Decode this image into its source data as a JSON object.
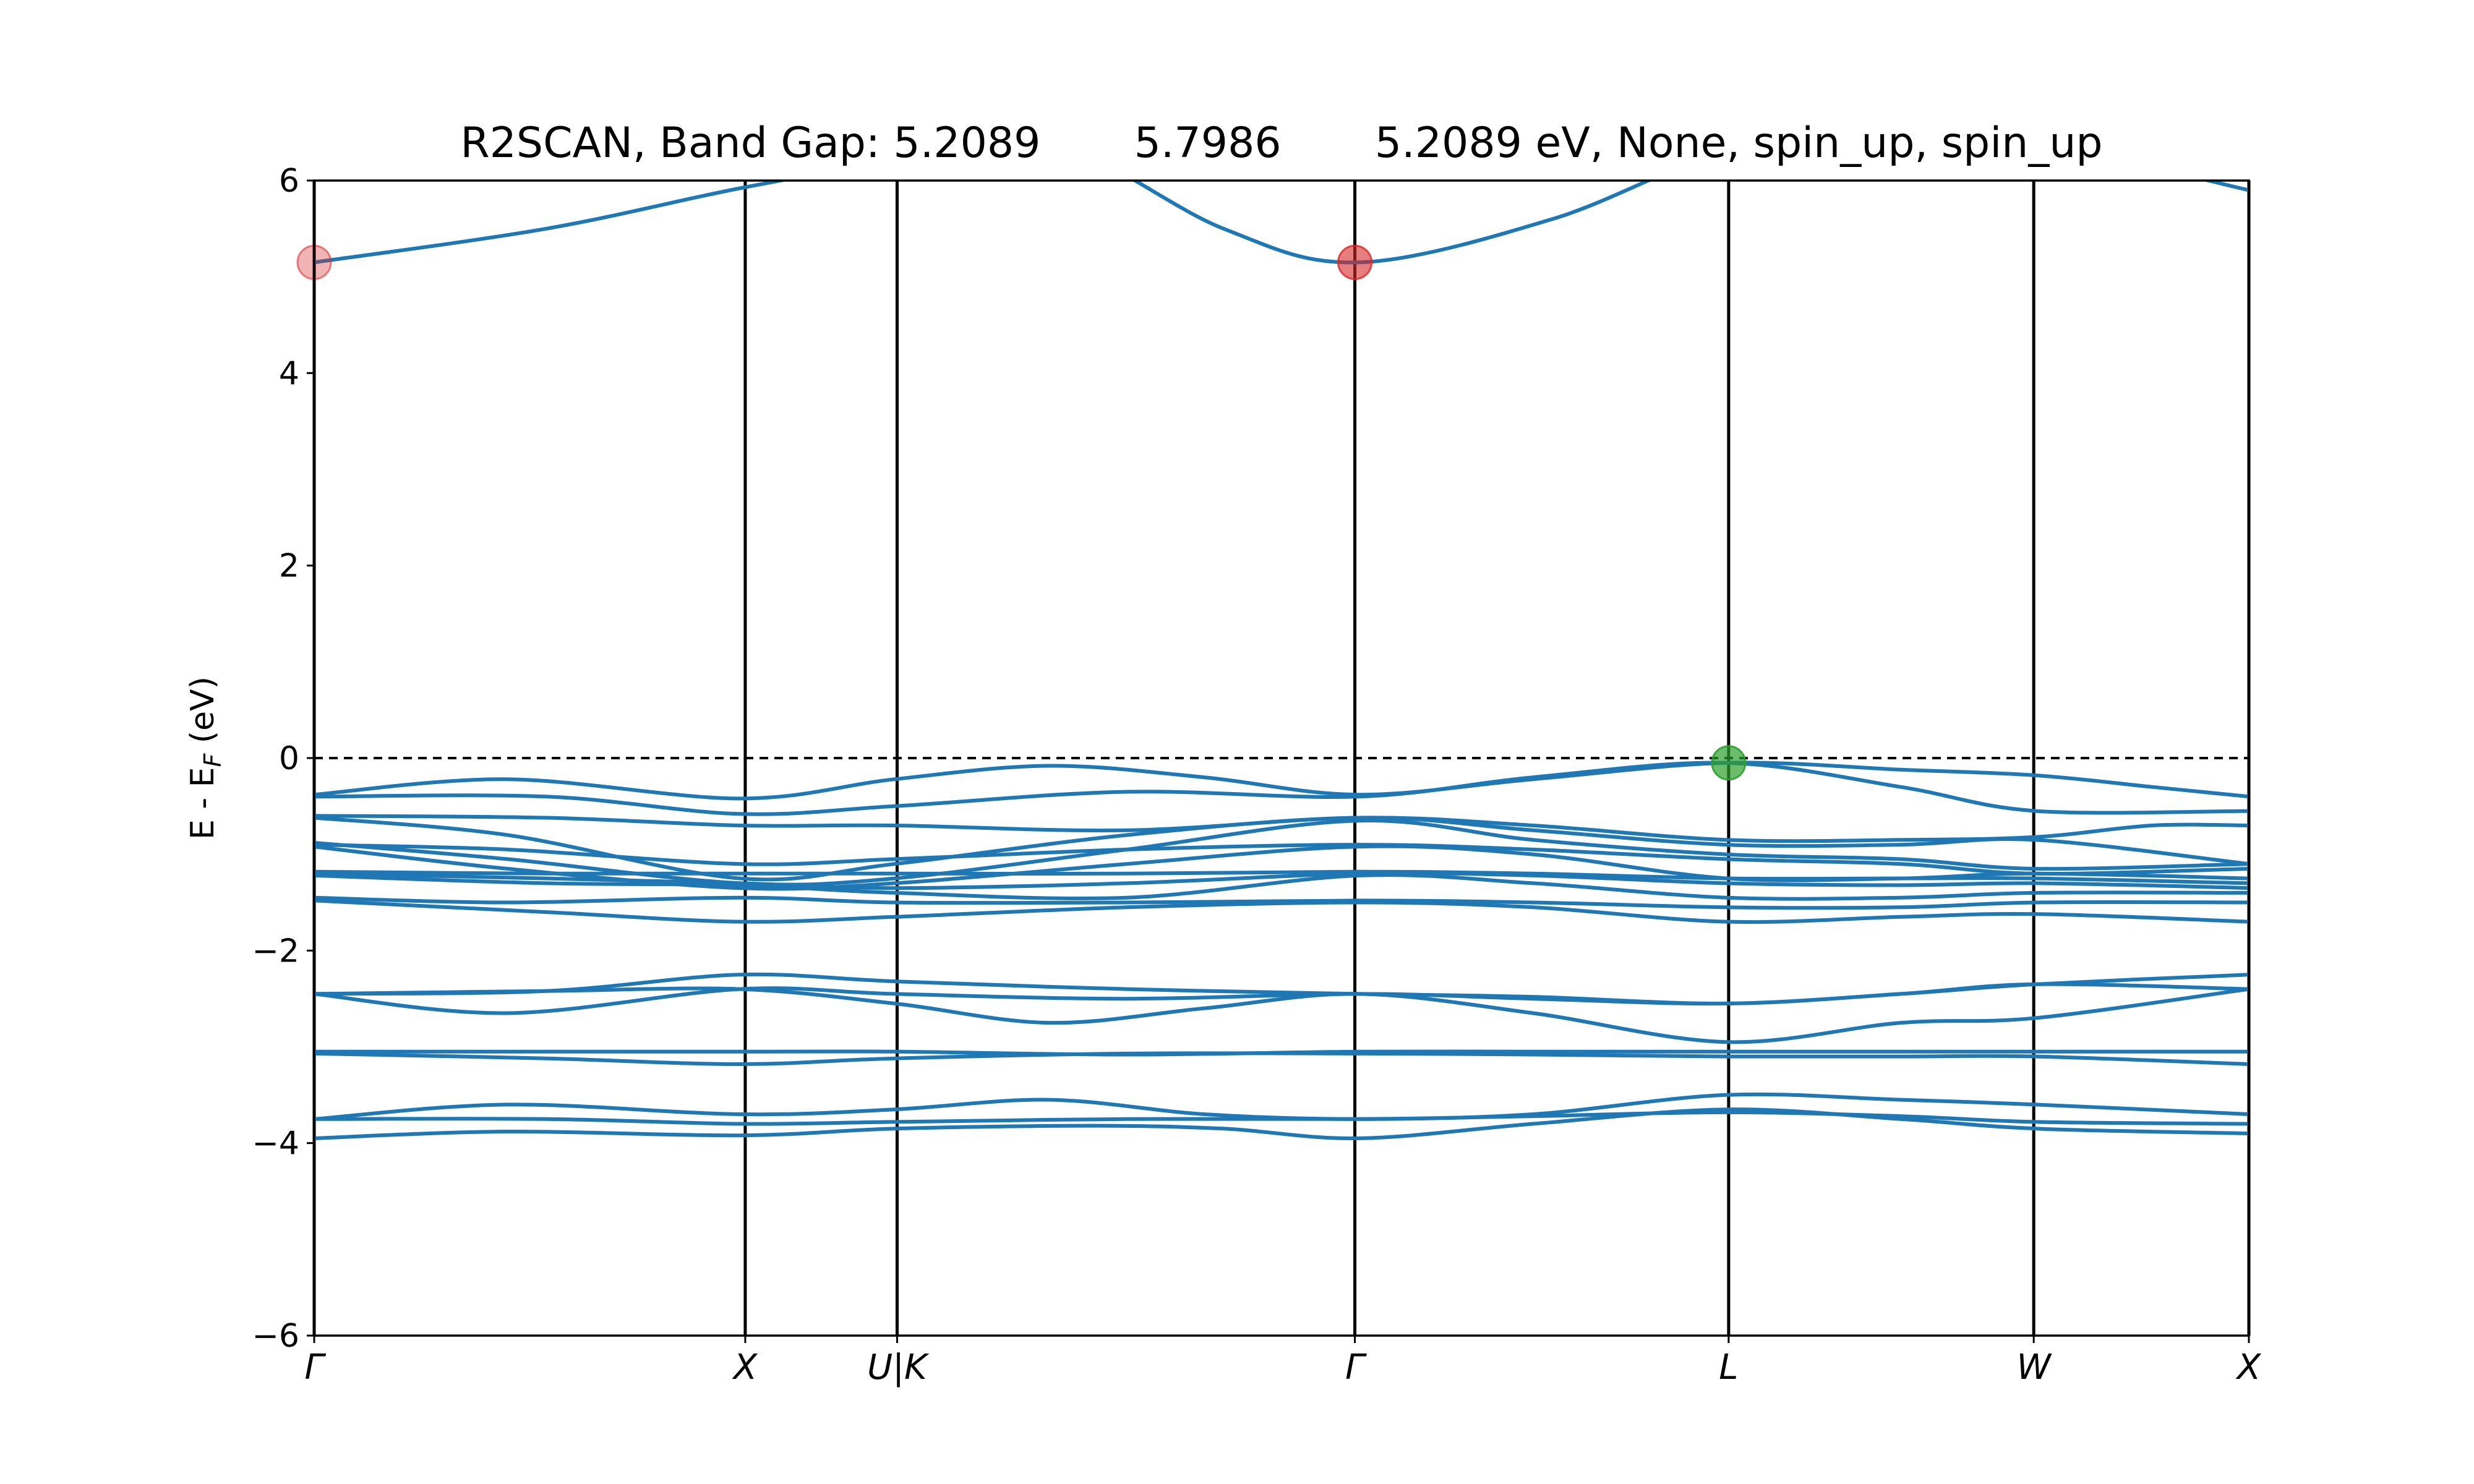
{
  "chart_data": {
    "type": "line",
    "title": "R2SCAN, Band Gap: 5.2089       5.7986       5.2089 eV, None, spin_up, spin_up",
    "ylabel": "E - E_F (eV)",
    "ylabel_parts": {
      "main": "E - E",
      "sub": "F",
      "unit": " (eV)"
    },
    "ylim": [
      -6,
      6
    ],
    "yticks": [
      -6,
      -4,
      -2,
      0,
      2,
      4,
      6
    ],
    "ytick_labels": [
      "−6",
      "−4",
      "−2",
      "0",
      "2",
      "4",
      "6"
    ],
    "xlim": [
      0,
      1
    ],
    "high_symmetry_points": [
      {
        "label": "Γ",
        "x": 0.0
      },
      {
        "label": "X",
        "x": 0.2228
      },
      {
        "label": "U|K",
        "x": 0.3013
      },
      {
        "label": "Γ",
        "x": 0.5379
      },
      {
        "label": "L",
        "x": 0.7311
      },
      {
        "label": "W",
        "x": 0.8888
      },
      {
        "label": "X",
        "x": 1.0
      }
    ],
    "fermi_level": 0,
    "grid": false,
    "line_color": "#1f77b4",
    "fermi_line_color": "#000000",
    "series": [
      {
        "x": [
          0,
          0.12,
          0.22,
          0.3,
          0.38,
          0.47,
          0.54,
          0.64,
          0.73,
          0.82,
          0.89,
          1.0
        ],
        "values": [
          5.15,
          5.5,
          5.92,
          6.2,
          6.4,
          5.5,
          5.15,
          5.6,
          6.3,
          6.5,
          6.4,
          5.9
        ]
      },
      {
        "x": [
          0,
          0.1,
          0.22,
          0.3,
          0.38,
          0.46,
          0.54,
          0.63,
          0.73,
          0.82,
          0.89,
          0.95,
          1.0
        ],
        "values": [
          -0.38,
          -0.22,
          -0.42,
          -0.22,
          -0.08,
          -0.2,
          -0.38,
          -0.22,
          -0.05,
          -0.12,
          -0.18,
          -0.3,
          -0.4
        ]
      },
      {
        "x": [
          0,
          0.12,
          0.22,
          0.3,
          0.42,
          0.54,
          0.63,
          0.73,
          0.82,
          0.89,
          1.0
        ],
        "values": [
          -0.4,
          -0.4,
          -0.58,
          -0.5,
          -0.35,
          -0.4,
          -0.2,
          -0.05,
          -0.3,
          -0.55,
          -0.55
        ]
      },
      {
        "x": [
          0,
          0.12,
          0.22,
          0.3,
          0.42,
          0.54,
          0.63,
          0.73,
          0.82,
          0.89,
          0.95,
          1.0
        ],
        "values": [
          -0.6,
          -0.62,
          -0.7,
          -0.7,
          -0.75,
          -0.62,
          -0.7,
          -0.85,
          -0.85,
          -0.82,
          -0.7,
          -0.7
        ]
      },
      {
        "x": [
          0,
          0.1,
          0.22,
          0.3,
          0.42,
          0.54,
          0.63,
          0.73,
          0.82,
          0.89,
          1.0
        ],
        "values": [
          -0.62,
          -0.8,
          -1.25,
          -1.1,
          -0.8,
          -0.62,
          -0.75,
          -0.9,
          -0.9,
          -0.85,
          -1.1
        ]
      },
      {
        "x": [
          0,
          0.1,
          0.22,
          0.3,
          0.42,
          0.54,
          0.63,
          0.73,
          0.82,
          0.89,
          1.0
        ],
        "values": [
          -0.88,
          -1.05,
          -1.3,
          -1.25,
          -0.95,
          -0.65,
          -0.85,
          -1.0,
          -1.05,
          -1.15,
          -1.1
        ]
      },
      {
        "x": [
          0,
          0.1,
          0.22,
          0.3,
          0.42,
          0.54,
          0.63,
          0.73,
          0.82,
          0.89,
          1.0
        ],
        "values": [
          -0.9,
          -0.95,
          -1.1,
          -1.05,
          -0.95,
          -0.9,
          -0.95,
          -1.05,
          -1.1,
          -1.2,
          -1.15
        ]
      },
      {
        "x": [
          0,
          0.1,
          0.22,
          0.3,
          0.42,
          0.54,
          0.63,
          0.73,
          0.82,
          0.89,
          1.0
        ],
        "values": [
          -0.92,
          -1.15,
          -1.35,
          -1.3,
          -1.1,
          -0.92,
          -1.0,
          -1.25,
          -1.25,
          -1.2,
          -1.25
        ]
      },
      {
        "x": [
          0,
          0.12,
          0.22,
          0.3,
          0.42,
          0.54,
          0.63,
          0.73,
          0.82,
          0.89,
          1.0
        ],
        "values": [
          -1.18,
          -1.2,
          -1.2,
          -1.2,
          -1.2,
          -1.18,
          -1.2,
          -1.25,
          -1.25,
          -1.25,
          -1.3
        ]
      },
      {
        "x": [
          0,
          0.12,
          0.22,
          0.3,
          0.42,
          0.54,
          0.63,
          0.73,
          0.82,
          0.89,
          1.0
        ],
        "values": [
          -1.2,
          -1.25,
          -1.3,
          -1.35,
          -1.3,
          -1.2,
          -1.22,
          -1.3,
          -1.32,
          -1.3,
          -1.35
        ]
      },
      {
        "x": [
          0,
          0.12,
          0.22,
          0.3,
          0.42,
          0.54,
          0.63,
          0.73,
          0.82,
          0.89,
          1.0
        ],
        "values": [
          -1.22,
          -1.3,
          -1.32,
          -1.4,
          -1.45,
          -1.22,
          -1.3,
          -1.45,
          -1.45,
          -1.4,
          -1.4
        ]
      },
      {
        "x": [
          0,
          0.1,
          0.22,
          0.3,
          0.42,
          0.54,
          0.63,
          0.73,
          0.82,
          0.89,
          1.0
        ],
        "values": [
          -1.45,
          -1.5,
          -1.45,
          -1.5,
          -1.5,
          -1.48,
          -1.5,
          -1.55,
          -1.55,
          -1.5,
          -1.5
        ]
      },
      {
        "x": [
          0,
          0.12,
          0.22,
          0.3,
          0.42,
          0.54,
          0.63,
          0.73,
          0.82,
          0.89,
          1.0
        ],
        "values": [
          -1.48,
          -1.6,
          -1.7,
          -1.65,
          -1.55,
          -1.5,
          -1.55,
          -1.7,
          -1.65,
          -1.62,
          -1.7
        ]
      },
      {
        "x": [
          0,
          0.1,
          0.22,
          0.3,
          0.42,
          0.54,
          0.63,
          0.73,
          0.82,
          0.89,
          1.0
        ],
        "values": [
          -2.45,
          -2.65,
          -2.4,
          -2.45,
          -2.5,
          -2.45,
          -2.5,
          -2.55,
          -2.45,
          -2.35,
          -2.25
        ]
      },
      {
        "x": [
          0,
          0.12,
          0.22,
          0.3,
          0.42,
          0.54,
          0.63,
          0.73,
          0.82,
          0.89,
          1.0
        ],
        "values": [
          -2.45,
          -2.42,
          -2.25,
          -2.32,
          -2.4,
          -2.45,
          -2.48,
          -2.55,
          -2.45,
          -2.35,
          -2.4
        ]
      },
      {
        "x": [
          0,
          0.12,
          0.22,
          0.3,
          0.38,
          0.46,
          0.54,
          0.63,
          0.73,
          0.82,
          0.89,
          1.0
        ],
        "values": [
          -2.45,
          -2.42,
          -2.4,
          -2.55,
          -2.75,
          -2.6,
          -2.45,
          -2.65,
          -2.95,
          -2.75,
          -2.7,
          -2.4
        ]
      },
      {
        "x": [
          0,
          0.12,
          0.22,
          0.3,
          0.42,
          0.54,
          0.63,
          0.73,
          0.82,
          0.89,
          1.0
        ],
        "values": [
          -3.05,
          -3.05,
          -3.05,
          -3.05,
          -3.08,
          -3.05,
          -3.05,
          -3.05,
          -3.05,
          -3.05,
          -3.05
        ]
      },
      {
        "x": [
          0,
          0.12,
          0.22,
          0.3,
          0.42,
          0.54,
          0.63,
          0.73,
          0.82,
          0.89,
          1.0
        ],
        "values": [
          -3.07,
          -3.12,
          -3.18,
          -3.12,
          -3.07,
          -3.07,
          -3.08,
          -3.1,
          -3.1,
          -3.1,
          -3.18
        ]
      },
      {
        "x": [
          0,
          0.1,
          0.22,
          0.3,
          0.38,
          0.46,
          0.54,
          0.63,
          0.73,
          0.82,
          0.89,
          1.0
        ],
        "values": [
          -3.75,
          -3.6,
          -3.7,
          -3.65,
          -3.55,
          -3.7,
          -3.75,
          -3.7,
          -3.5,
          -3.55,
          -3.6,
          -3.7
        ]
      },
      {
        "x": [
          0,
          0.12,
          0.22,
          0.3,
          0.42,
          0.54,
          0.63,
          0.73,
          0.82,
          0.89,
          1.0
        ],
        "values": [
          -3.75,
          -3.75,
          -3.8,
          -3.78,
          -3.75,
          -3.75,
          -3.72,
          -3.68,
          -3.72,
          -3.78,
          -3.8
        ]
      },
      {
        "x": [
          0,
          0.1,
          0.22,
          0.3,
          0.4,
          0.47,
          0.54,
          0.63,
          0.73,
          0.82,
          0.89,
          1.0
        ],
        "values": [
          -3.95,
          -3.88,
          -3.92,
          -3.85,
          -3.82,
          -3.85,
          -3.95,
          -3.8,
          -3.65,
          -3.75,
          -3.85,
          -3.9
        ]
      }
    ],
    "markers": [
      {
        "x": 0.0,
        "y": 5.15,
        "color": "#d62728",
        "opacity": 0.35
      },
      {
        "x": 0.5379,
        "y": 5.15,
        "color": "#d62728",
        "opacity": 0.6
      },
      {
        "x": 0.7311,
        "y": -0.05,
        "color": "#2ca02c",
        "opacity": 0.7
      }
    ]
  }
}
